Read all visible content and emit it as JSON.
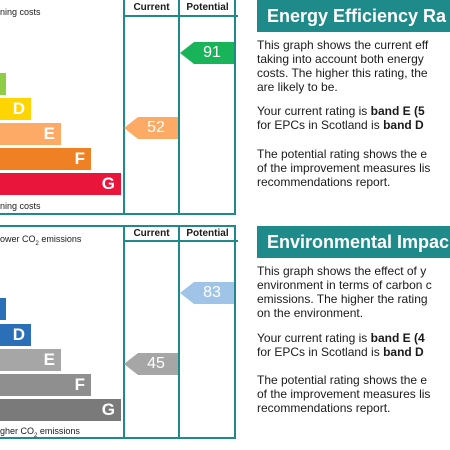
{
  "energy_chart": {
    "top_note": "ning costs",
    "bottom_note": "ning costs",
    "col_current": "Current",
    "col_potential": "Potential",
    "bands": [
      {
        "letter": "D",
        "color": "#ffd500"
      },
      {
        "letter": "E",
        "color": "#fcaa65"
      },
      {
        "letter": "F",
        "color": "#ef8023"
      },
      {
        "letter": "G",
        "color": "#e9153b"
      }
    ],
    "current": {
      "value": "52",
      "color": "#fcaa65"
    },
    "potential": {
      "value": "91",
      "color": "#19b459"
    },
    "top_band_color": "#8dce46"
  },
  "environment_chart": {
    "top_note_prefix": "ower CO",
    "top_note_sub": "2",
    "top_note_suffix": " emissions",
    "bottom_note_prefix": "gher CO",
    "bottom_note_sub": "2",
    "bottom_note_suffix": " emissions",
    "col_current": "Current",
    "col_potential": "Potential",
    "bands": [
      {
        "letter": "D",
        "color": "#2b6fb9"
      },
      {
        "letter": "E",
        "color": "#a6a6a6"
      },
      {
        "letter": "F",
        "color": "#8f8f8f"
      },
      {
        "letter": "G",
        "color": "#7a7a7a"
      }
    ],
    "current": {
      "value": "45",
      "color": "#a6a6a6"
    },
    "potential": {
      "value": "83",
      "color": "#a0c4e8"
    },
    "top_band_color": "#2b6fb9"
  },
  "energy_text": {
    "title": "Energy Efficiency Ra",
    "p1": [
      "This graph shows the current eff",
      "taking into account both energy",
      "costs. The higher this rating, the",
      "are likely to be."
    ],
    "p2_line1_prefix": "Your current rating is ",
    "p2_line1_bold": "band E (5",
    "p2_line2_prefix": "for EPCs in Scotland is ",
    "p2_line2_bold": "band D",
    "p3": [
      "The potential rating shows the e",
      "of the improvement measures lis",
      "recommendations report."
    ]
  },
  "environment_text": {
    "title": "Environmental Impac",
    "p1": [
      "This graph shows the effect of y",
      "environment in terms of carbon c",
      "emissions. The higher the rating",
      "on the environment."
    ],
    "p2_line1_prefix": "Your current rating is ",
    "p2_line1_bold": "band E (4",
    "p2_line2_prefix": "for EPCs in Scotland is ",
    "p2_line2_bold": "band D",
    "p3": [
      "The potential rating shows the e",
      "of the improvement measures lis",
      "recommendations report."
    ]
  }
}
